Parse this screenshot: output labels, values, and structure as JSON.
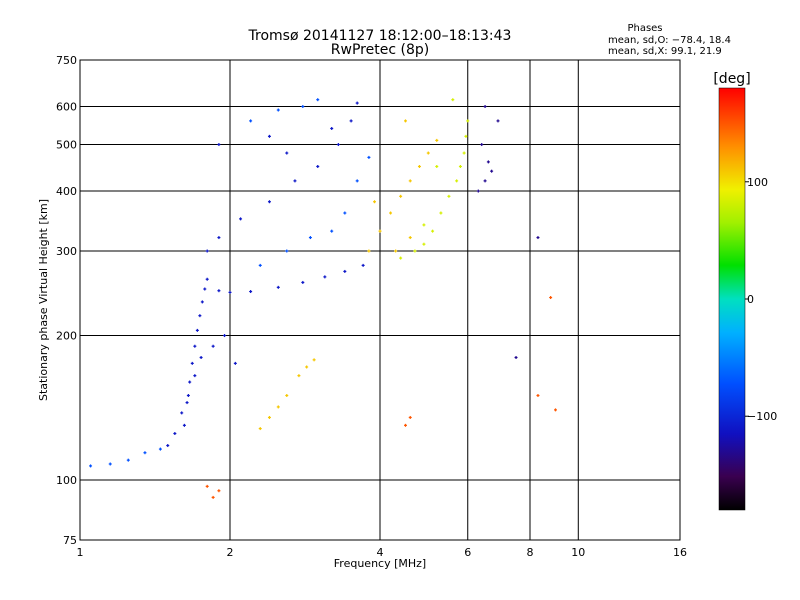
{
  "chart_data": {
    "type": "scatter",
    "title": "Tromsø 20141127 18:12:00–18:13:43",
    "subtitle": "RwPretec (8p)",
    "xlabel": "Frequency [MHz]",
    "ylabel": "Stationary phase Virtual Height [km]",
    "x_scale": "log",
    "y_scale": "log",
    "xlim": [
      1,
      16
    ],
    "ylim": [
      75,
      750
    ],
    "x_ticks": [
      1,
      2,
      4,
      6,
      8,
      10,
      16
    ],
    "x_tick_labels": [
      "1",
      "2",
      "4",
      "6",
      "8",
      "10",
      "16"
    ],
    "y_ticks": [
      75,
      100,
      200,
      300,
      400,
      500,
      600,
      750
    ],
    "y_tick_labels": [
      "75",
      "100",
      "200",
      "300",
      "400",
      "500",
      "600",
      "750"
    ],
    "grid": true,
    "phase_info": {
      "heading": "Phases",
      "line_o": "mean, sd,O: −78.4, 18.4",
      "line_x": "mean, sd,X:  99.1, 21.9"
    },
    "colorbar": {
      "label": "[deg]",
      "range": [
        -180,
        180
      ],
      "ticks": [
        100,
        0,
        -100
      ],
      "tick_labels": [
        "100",
        "0",
        "−100"
      ],
      "colormap": "rainbow"
    },
    "series": [
      {
        "phase_deg": -110,
        "points": [
          [
            1.62,
            130
          ],
          [
            1.64,
            145
          ],
          [
            1.66,
            160
          ],
          [
            1.68,
            175
          ],
          [
            1.7,
            190
          ],
          [
            1.72,
            205
          ],
          [
            1.74,
            220
          ],
          [
            1.76,
            235
          ],
          [
            1.78,
            250
          ],
          [
            1.8,
            262
          ],
          [
            1.9,
            248
          ],
          [
            2.0,
            246
          ],
          [
            2.2,
            247
          ],
          [
            2.5,
            252
          ],
          [
            2.8,
            258
          ],
          [
            3.1,
            265
          ],
          [
            3.4,
            272
          ],
          [
            3.7,
            280
          ],
          [
            1.8,
            300
          ],
          [
            1.9,
            320
          ],
          [
            2.1,
            350
          ],
          [
            2.4,
            380
          ],
          [
            2.7,
            420
          ],
          [
            3.0,
            450
          ],
          [
            3.3,
            500
          ],
          [
            3.5,
            560
          ],
          [
            3.6,
            610
          ],
          [
            1.9,
            500
          ],
          [
            2.4,
            520
          ],
          [
            2.6,
            480
          ],
          [
            3.2,
            540
          ],
          [
            1.5,
            118
          ],
          [
            1.55,
            125
          ],
          [
            1.6,
            138
          ],
          [
            1.65,
            150
          ],
          [
            1.7,
            165
          ],
          [
            1.75,
            180
          ],
          [
            1.85,
            190
          ],
          [
            1.95,
            200
          ],
          [
            2.05,
            175
          ]
        ]
      },
      {
        "phase_deg": -75,
        "points": [
          [
            1.05,
            107
          ],
          [
            1.15,
            108
          ],
          [
            1.25,
            110
          ],
          [
            1.35,
            114
          ],
          [
            1.45,
            116
          ],
          [
            2.3,
            280
          ],
          [
            2.6,
            300
          ],
          [
            2.9,
            320
          ],
          [
            3.2,
            330
          ],
          [
            3.4,
            360
          ],
          [
            3.6,
            420
          ],
          [
            3.8,
            470
          ],
          [
            2.2,
            560
          ],
          [
            2.5,
            590
          ],
          [
            2.8,
            600
          ],
          [
            3.0,
            620
          ]
        ]
      },
      {
        "phase_deg": 110,
        "points": [
          [
            2.3,
            128
          ],
          [
            2.4,
            135
          ],
          [
            2.5,
            142
          ],
          [
            2.6,
            150
          ],
          [
            2.75,
            165
          ],
          [
            2.85,
            172
          ],
          [
            2.95,
            178
          ],
          [
            3.8,
            300
          ],
          [
            4.0,
            330
          ],
          [
            4.2,
            360
          ],
          [
            4.4,
            390
          ],
          [
            4.6,
            420
          ],
          [
            4.8,
            450
          ],
          [
            5.0,
            480
          ],
          [
            5.2,
            510
          ],
          [
            4.5,
            560
          ],
          [
            3.9,
            380
          ],
          [
            4.3,
            300
          ],
          [
            4.6,
            320
          ]
        ]
      },
      {
        "phase_deg": 85,
        "points": [
          [
            4.4,
            290
          ],
          [
            4.7,
            300
          ],
          [
            4.9,
            310
          ],
          [
            5.1,
            330
          ],
          [
            5.3,
            360
          ],
          [
            5.5,
            390
          ],
          [
            5.7,
            420
          ],
          [
            5.8,
            450
          ],
          [
            5.9,
            480
          ],
          [
            5.95,
            520
          ],
          [
            6.0,
            560
          ],
          [
            5.2,
            450
          ],
          [
            4.9,
            340
          ],
          [
            5.6,
            620
          ]
        ]
      },
      {
        "phase_deg": -130,
        "points": [
          [
            6.3,
            400
          ],
          [
            6.5,
            420
          ],
          [
            6.7,
            440
          ],
          [
            6.6,
            460
          ],
          [
            6.4,
            500
          ],
          [
            6.9,
            560
          ],
          [
            7.5,
            180
          ],
          [
            8.3,
            320
          ],
          [
            6.5,
            600
          ]
        ]
      },
      {
        "phase_deg": 150,
        "points": [
          [
            1.8,
            97
          ],
          [
            1.85,
            92
          ],
          [
            1.9,
            95
          ],
          [
            8.8,
            240
          ],
          [
            8.3,
            150
          ],
          [
            9.0,
            140
          ],
          [
            4.5,
            130
          ],
          [
            4.6,
            135
          ]
        ]
      }
    ]
  }
}
